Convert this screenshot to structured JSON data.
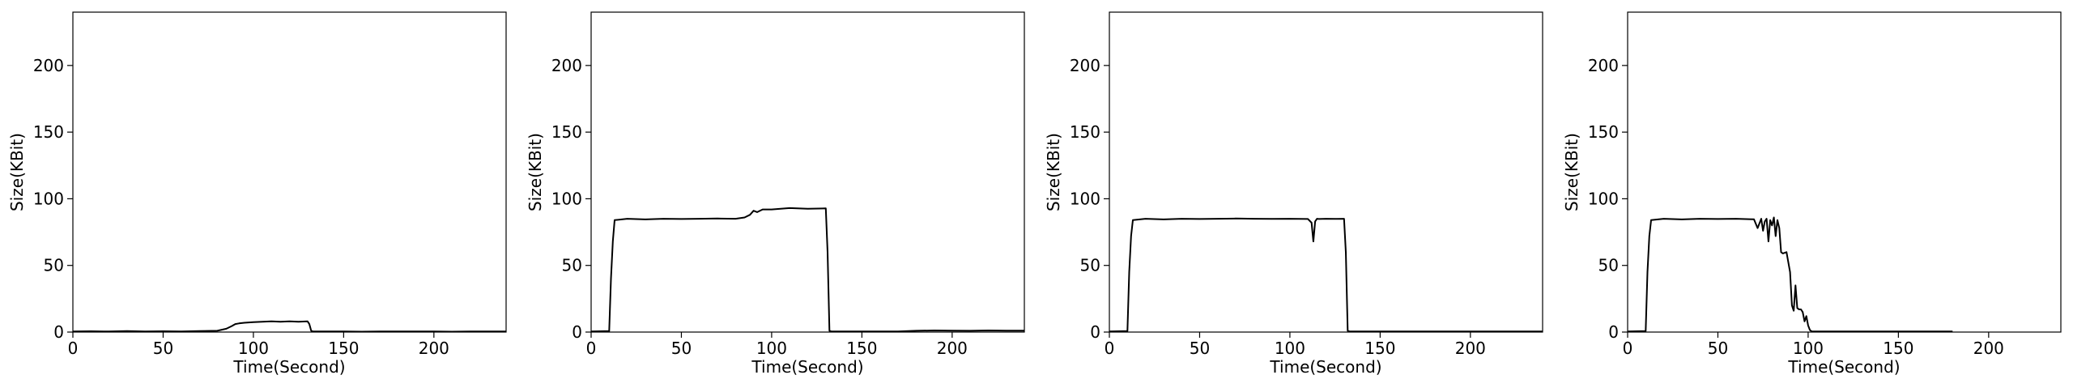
{
  "chart_data": [
    {
      "type": "line",
      "title": "",
      "xlabel": "Time(Second)",
      "ylabel": "Size(KBit)",
      "xlim": [
        0,
        240
      ],
      "ylim": [
        0,
        240
      ],
      "xticks": [
        0,
        50,
        100,
        150,
        200
      ],
      "yticks": [
        0,
        50,
        100,
        150,
        200
      ],
      "grid": false,
      "series": [
        {
          "color": "#000000",
          "x": [
            0,
            10,
            20,
            30,
            40,
            50,
            60,
            70,
            80,
            85,
            88,
            90,
            92,
            95,
            100,
            105,
            110,
            115,
            120,
            125,
            130,
            131,
            132,
            133,
            140,
            150,
            160,
            170,
            180,
            190,
            200,
            210,
            220,
            230,
            240
          ],
          "y": [
            0.5,
            0.6,
            0.4,
            0.7,
            0.5,
            0.6,
            0.5,
            0.7,
            1.0,
            2.5,
            4.5,
            6.0,
            6.5,
            7.0,
            7.5,
            7.8,
            8.0,
            7.7,
            8.0,
            7.8,
            8.0,
            6.0,
            1.0,
            0.5,
            0.4,
            0.5,
            0.3,
            0.4,
            0.5,
            0.4,
            0.4,
            0.3,
            0.4,
            0.4,
            0.4
          ]
        }
      ]
    },
    {
      "type": "line",
      "title": "",
      "xlabel": "Time(Second)",
      "ylabel": "Size(KBit)",
      "xlim": [
        0,
        240
      ],
      "ylim": [
        0,
        240
      ],
      "xticks": [
        0,
        50,
        100,
        150,
        200
      ],
      "yticks": [
        0,
        50,
        100,
        150,
        200
      ],
      "grid": false,
      "series": [
        {
          "color": "#000000",
          "x": [
            0,
            5,
            10,
            11,
            12,
            13,
            20,
            30,
            40,
            50,
            60,
            70,
            80,
            85,
            88,
            90,
            92,
            95,
            100,
            110,
            120,
            130,
            131,
            132,
            133,
            140,
            150,
            160,
            170,
            180,
            190,
            200,
            210,
            220,
            230,
            240
          ],
          "y": [
            0.5,
            0.6,
            0.8,
            40,
            68,
            84,
            85,
            84.5,
            85,
            84.8,
            85,
            85.2,
            85,
            86,
            88,
            91,
            90,
            92,
            92,
            93,
            92.5,
            92.8,
            60,
            1.0,
            0.5,
            0.5,
            0.4,
            0.5,
            0.4,
            1.0,
            1.2,
            1.1,
            1.0,
            1.2,
            1.1,
            1.1
          ]
        }
      ]
    },
    {
      "type": "line",
      "title": "",
      "xlabel": "Time(Second)",
      "ylabel": "Size(KBit)",
      "xlim": [
        0,
        240
      ],
      "ylim": [
        0,
        240
      ],
      "xticks": [
        0,
        50,
        100,
        150,
        200
      ],
      "yticks": [
        0,
        50,
        100,
        150,
        200
      ],
      "grid": false,
      "series": [
        {
          "color": "#000000",
          "x": [
            0,
            5,
            10,
            11,
            12,
            13,
            20,
            30,
            40,
            50,
            60,
            70,
            80,
            90,
            100,
            110,
            112,
            113,
            114,
            115,
            116,
            120,
            125,
            130,
            131,
            132,
            133,
            140,
            150,
            160,
            170,
            180,
            190,
            200,
            210,
            220,
            230,
            240
          ],
          "y": [
            0.5,
            0.6,
            0.8,
            45,
            72,
            84,
            85,
            84.5,
            85,
            84.8,
            85,
            85.2,
            85,
            84.9,
            85,
            84.8,
            82,
            68,
            83,
            85,
            84.8,
            85,
            84.9,
            85,
            60,
            1.0,
            0.5,
            0.5,
            0.4,
            0.5,
            0.4,
            0.5,
            0.4,
            0.5,
            0.4,
            0.5,
            0.4,
            0.5
          ]
        }
      ]
    },
    {
      "type": "line",
      "title": "",
      "xlabel": "Time(Second)",
      "ylabel": "Size(KBit)",
      "xlim": [
        0,
        240
      ],
      "ylim": [
        0,
        240
      ],
      "xticks": [
        0,
        50,
        100,
        150,
        200
      ],
      "yticks": [
        0,
        50,
        100,
        150,
        200
      ],
      "grid": false,
      "series": [
        {
          "color": "#000000",
          "x": [
            0,
            5,
            10,
            11,
            12,
            13,
            20,
            30,
            40,
            50,
            60,
            70,
            72,
            74,
            75,
            76,
            77,
            78,
            79,
            80,
            81,
            82,
            83,
            84,
            85,
            86,
            88,
            90,
            91,
            92,
            93,
            94,
            95,
            96,
            97,
            98,
            99,
            100,
            101,
            102,
            105,
            110,
            120,
            130,
            140,
            150,
            160,
            170,
            180
          ],
          "y": [
            0.5,
            0.6,
            0.8,
            45,
            72,
            84,
            85,
            84.5,
            85,
            84.8,
            85,
            84.6,
            78,
            85,
            76,
            83,
            85,
            68,
            84,
            80,
            86,
            72,
            84,
            78,
            60,
            59,
            60,
            45,
            20,
            16,
            35,
            18,
            17,
            17,
            15,
            8,
            12,
            5,
            1.5,
            0.5,
            0.4,
            0.4,
            0.5,
            0.4,
            0.4,
            0.5,
            0.4,
            0.4,
            0.4
          ]
        }
      ]
    }
  ]
}
